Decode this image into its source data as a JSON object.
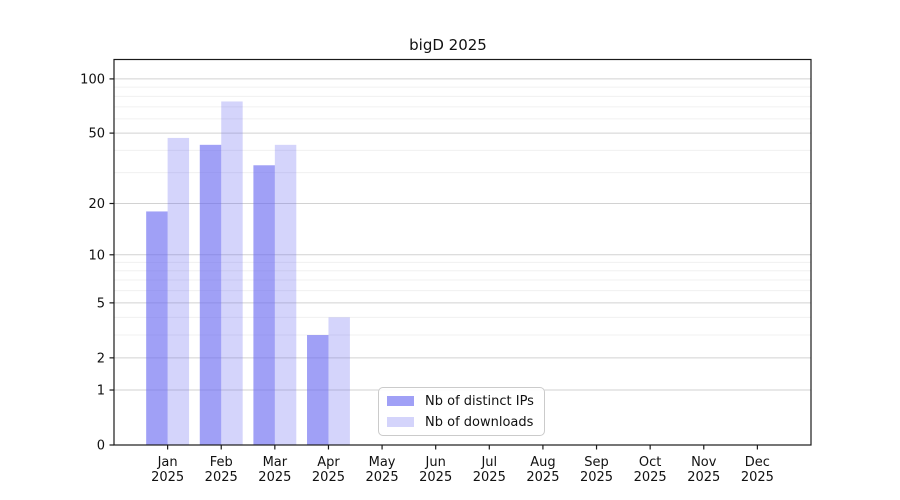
{
  "chart_data": {
    "type": "bar",
    "title": "bigD 2025",
    "categories": [
      "Jan",
      "Feb",
      "Mar",
      "Apr",
      "May",
      "Jun",
      "Jul",
      "Aug",
      "Sep",
      "Oct",
      "Nov",
      "Dec"
    ],
    "category_year": "2025",
    "series": [
      {
        "name": "Nb of distinct IPs",
        "values": [
          18,
          43,
          33,
          3,
          0,
          0,
          0,
          0,
          0,
          0,
          0,
          0
        ],
        "base_color": "#6666f0",
        "opacity": 0.62
      },
      {
        "name": "Nb of downloads",
        "values": [
          47,
          75,
          43,
          4,
          0,
          0,
          0,
          0,
          0,
          0,
          0,
          0
        ],
        "base_color": "#6666f0",
        "opacity": 0.28
      }
    ],
    "yscale": "log1p",
    "ylim": [
      0,
      128
    ],
    "yticks": [
      0,
      1,
      2,
      5,
      10,
      20,
      50,
      100
    ],
    "minor_gridlines": [
      3,
      4,
      6,
      7,
      8,
      9,
      30,
      40,
      60,
      70,
      80,
      90
    ],
    "xlim": [
      -1,
      12
    ],
    "bar_width_units": 0.4,
    "grid": true,
    "legend_position": "lower center",
    "colors": {
      "major_grid": "#d2d2d2",
      "minor_grid": "#f0f0f0",
      "spine": "#1a1a1a",
      "tick": "#1a1a1a",
      "text": "#111111",
      "background": "#ffffff"
    }
  }
}
